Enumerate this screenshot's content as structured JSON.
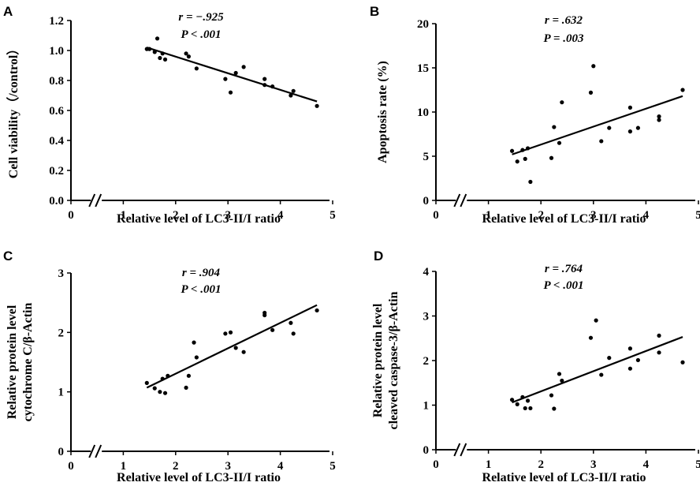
{
  "chart_data": [
    {
      "type": "scatter",
      "panel": "A",
      "xlabel": "Relative level of LC3-II/I ratio",
      "ylabel": "Cell viability（/control）",
      "xlim": [
        0,
        5
      ],
      "ylim": [
        0,
        1.2
      ],
      "xticks": [
        "0",
        "1",
        "2",
        "3",
        "4",
        "5"
      ],
      "yticks": [
        "0.0",
        "0.2",
        "0.4",
        "0.6",
        "0.8",
        "1.0",
        "1.2"
      ],
      "annotation": {
        "r": "r = −.925",
        "p": "P <  .001"
      },
      "points": [
        {
          "x": 1.45,
          "y": 1.01
        },
        {
          "x": 1.5,
          "y": 1.01
        },
        {
          "x": 1.6,
          "y": 0.99
        },
        {
          "x": 1.65,
          "y": 1.08
        },
        {
          "x": 1.7,
          "y": 0.95
        },
        {
          "x": 1.75,
          "y": 0.98
        },
        {
          "x": 1.8,
          "y": 0.94
        },
        {
          "x": 2.2,
          "y": 0.98
        },
        {
          "x": 2.25,
          "y": 0.96
        },
        {
          "x": 2.4,
          "y": 0.88
        },
        {
          "x": 2.95,
          "y": 0.81
        },
        {
          "x": 3.05,
          "y": 0.72
        },
        {
          "x": 3.15,
          "y": 0.85
        },
        {
          "x": 3.3,
          "y": 0.89
        },
        {
          "x": 3.7,
          "y": 0.81
        },
        {
          "x": 3.7,
          "y": 0.77
        },
        {
          "x": 3.85,
          "y": 0.76
        },
        {
          "x": 4.2,
          "y": 0.7
        },
        {
          "x": 4.25,
          "y": 0.73
        },
        {
          "x": 4.7,
          "y": 0.63
        }
      ],
      "trendline": {
        "x": [
          1.45,
          4.7
        ],
        "y": [
          1.02,
          0.66
        ]
      }
    },
    {
      "type": "scatter",
      "panel": "B",
      "xlabel": "Relative level of LC3-II/I ratio",
      "ylabel": "Apoptosis rate (%)",
      "xlim": [
        0,
        5
      ],
      "ylim": [
        0,
        20
      ],
      "xticks": [
        "0",
        "1",
        "2",
        "3",
        "4",
        "5"
      ],
      "yticks": [
        "0",
        "5",
        "10",
        "15",
        "20"
      ],
      "annotation": {
        "r": "r = .632",
        "p": "P = .003"
      },
      "points": [
        {
          "x": 1.45,
          "y": 5.6
        },
        {
          "x": 1.55,
          "y": 4.4
        },
        {
          "x": 1.65,
          "y": 5.7
        },
        {
          "x": 1.7,
          "y": 4.7
        },
        {
          "x": 1.75,
          "y": 5.9
        },
        {
          "x": 1.8,
          "y": 2.1
        },
        {
          "x": 2.2,
          "y": 4.8
        },
        {
          "x": 2.25,
          "y": 8.3
        },
        {
          "x": 2.35,
          "y": 6.5
        },
        {
          "x": 2.4,
          "y": 11.1
        },
        {
          "x": 2.95,
          "y": 12.2
        },
        {
          "x": 3.0,
          "y": 15.2
        },
        {
          "x": 3.15,
          "y": 6.7
        },
        {
          "x": 3.3,
          "y": 8.2
        },
        {
          "x": 3.7,
          "y": 10.5
        },
        {
          "x": 3.7,
          "y": 7.8
        },
        {
          "x": 3.85,
          "y": 8.2
        },
        {
          "x": 4.25,
          "y": 9.1
        },
        {
          "x": 4.25,
          "y": 9.5
        },
        {
          "x": 4.7,
          "y": 12.5
        }
      ],
      "trendline": {
        "x": [
          1.45,
          4.7
        ],
        "y": [
          5.2,
          11.8
        ]
      }
    },
    {
      "type": "scatter",
      "panel": "C",
      "xlabel": "Relative level of LC3-II/I ratio",
      "ylabel": [
        "Relative protein level",
        "cytochrome C/β-Actin"
      ],
      "xlim": [
        0,
        5
      ],
      "ylim": [
        0,
        3
      ],
      "xticks": [
        "0",
        "1",
        "2",
        "3",
        "4",
        "5"
      ],
      "yticks": [
        "0",
        "1",
        "2",
        "3"
      ],
      "annotation": {
        "r": "r = .904",
        "p": "P <  .001"
      },
      "points": [
        {
          "x": 1.45,
          "y": 1.15
        },
        {
          "x": 1.6,
          "y": 1.06
        },
        {
          "x": 1.7,
          "y": 1.0
        },
        {
          "x": 1.75,
          "y": 1.22
        },
        {
          "x": 1.8,
          "y": 0.98
        },
        {
          "x": 1.85,
          "y": 1.27
        },
        {
          "x": 2.2,
          "y": 1.07
        },
        {
          "x": 2.25,
          "y": 1.27
        },
        {
          "x": 2.35,
          "y": 1.83
        },
        {
          "x": 2.4,
          "y": 1.58
        },
        {
          "x": 2.95,
          "y": 1.98
        },
        {
          "x": 3.05,
          "y": 2.0
        },
        {
          "x": 3.15,
          "y": 1.74
        },
        {
          "x": 3.3,
          "y": 1.67
        },
        {
          "x": 3.7,
          "y": 2.33
        },
        {
          "x": 3.7,
          "y": 2.29
        },
        {
          "x": 3.85,
          "y": 2.04
        },
        {
          "x": 4.2,
          "y": 2.16
        },
        {
          "x": 4.25,
          "y": 1.98
        },
        {
          "x": 4.7,
          "y": 2.37
        }
      ],
      "trendline": {
        "x": [
          1.45,
          4.7
        ],
        "y": [
          1.07,
          2.46
        ]
      }
    },
    {
      "type": "scatter",
      "panel": "D",
      "xlabel": "Relative level of LC3-II/I ratio",
      "ylabel": [
        "Relative protein level",
        "cleaved caspase-3/β-Actin"
      ],
      "xlim": [
        0,
        5
      ],
      "ylim": [
        0,
        4
      ],
      "xticks": [
        "0",
        "1",
        "2",
        "3",
        "4",
        "5"
      ],
      "yticks": [
        "0",
        "1",
        "2",
        "3",
        "4"
      ],
      "annotation": {
        "r": "r = .764",
        "p": "P <  .001"
      },
      "points": [
        {
          "x": 1.45,
          "y": 1.12
        },
        {
          "x": 1.55,
          "y": 1.02
        },
        {
          "x": 1.65,
          "y": 1.18
        },
        {
          "x": 1.7,
          "y": 0.93
        },
        {
          "x": 1.75,
          "y": 1.1
        },
        {
          "x": 1.8,
          "y": 0.93
        },
        {
          "x": 2.2,
          "y": 1.22
        },
        {
          "x": 2.25,
          "y": 0.92
        },
        {
          "x": 2.35,
          "y": 1.7
        },
        {
          "x": 2.4,
          "y": 1.55
        },
        {
          "x": 2.95,
          "y": 2.51
        },
        {
          "x": 3.05,
          "y": 2.9
        },
        {
          "x": 3.15,
          "y": 1.68
        },
        {
          "x": 3.3,
          "y": 2.06
        },
        {
          "x": 3.7,
          "y": 2.27
        },
        {
          "x": 3.7,
          "y": 1.82
        },
        {
          "x": 3.85,
          "y": 2.01
        },
        {
          "x": 4.25,
          "y": 2.56
        },
        {
          "x": 4.25,
          "y": 2.18
        },
        {
          "x": 4.7,
          "y": 1.96
        }
      ],
      "trendline": {
        "x": [
          1.45,
          4.7
        ],
        "y": [
          1.06,
          2.53
        ]
      }
    }
  ]
}
